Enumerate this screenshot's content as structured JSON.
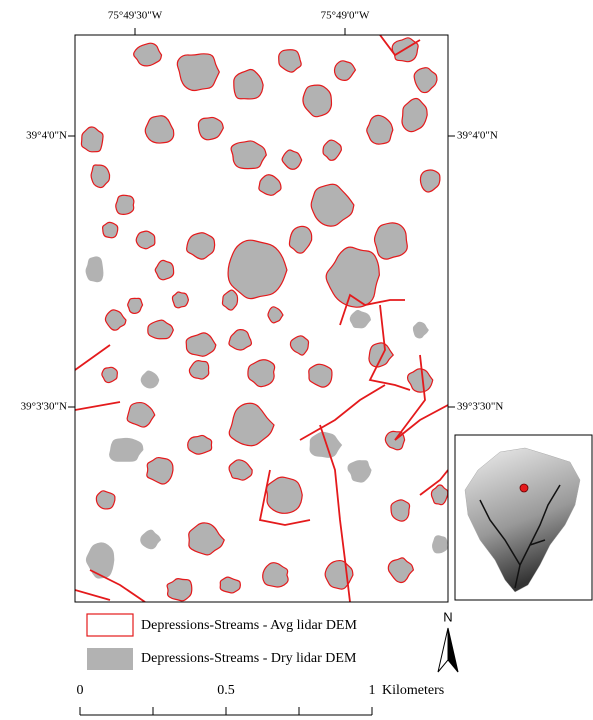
{
  "map": {
    "graticule": {
      "longitude_labels": [
        "75°49'30\"W",
        "75°49'0\"W"
      ],
      "latitude_labels": [
        "39°4'0\"N",
        "39°3'30\"N"
      ]
    },
    "legend": {
      "entries": [
        "Depressions-Streams - Avg lidar DEM",
        "Depressions-Streams - Dry lidar DEM"
      ]
    },
    "north_arrow": {
      "label": "N"
    },
    "scale_bar": {
      "labels": [
        0,
        0.5,
        1
      ],
      "unit": "Kilometers"
    }
  }
}
